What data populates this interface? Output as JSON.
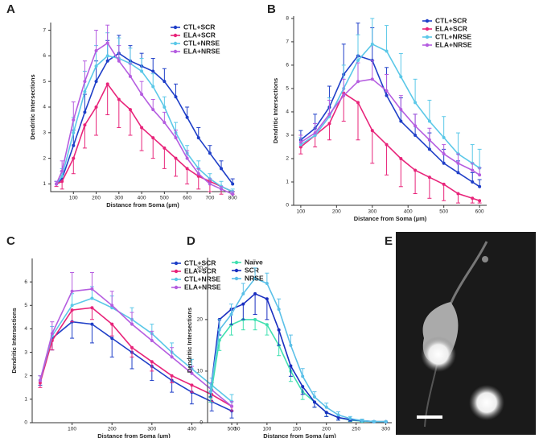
{
  "chart_data": [
    {
      "type": "line",
      "panel": "A",
      "xlabel": "Distance from Soma (µm)",
      "ylabel": "Dendritic Intersections",
      "legend": "upper right",
      "x": [
        25,
        50,
        100,
        150,
        200,
        250,
        300,
        350,
        400,
        450,
        500,
        550,
        600,
        650,
        700,
        750,
        800
      ],
      "xlim": [
        0,
        810
      ],
      "xticks": [
        100,
        200,
        300,
        400,
        500,
        600,
        700,
        800
      ],
      "ylim": [
        0.7,
        7.3
      ],
      "yticks": [
        1,
        2,
        3,
        4,
        5,
        6,
        7
      ],
      "series": [
        {
          "name": "CTL+SCR",
          "color": "#1f3fc8",
          "error_direction": "up",
          "values": [
            1.0,
            1.2,
            2.5,
            3.8,
            5.0,
            5.8,
            6.1,
            5.8,
            5.6,
            5.4,
            5.0,
            4.4,
            3.6,
            2.8,
            2.2,
            1.6,
            1.0
          ],
          "errors": [
            0.1,
            0.3,
            0.6,
            0.7,
            0.8,
            0.8,
            0.7,
            0.6,
            0.5,
            0.5,
            0.5,
            0.5,
            0.4,
            0.4,
            0.3,
            0.3,
            0.2
          ]
        },
        {
          "name": "ELA+SCR",
          "color": "#e8247a",
          "error_direction": "down",
          "values": [
            1.0,
            1.1,
            2.0,
            3.3,
            4.0,
            4.9,
            4.3,
            3.9,
            3.2,
            2.8,
            2.4,
            2.0,
            1.6,
            1.3,
            1.1,
            0.9,
            0.7
          ],
          "errors": [
            0.1,
            0.3,
            0.6,
            0.9,
            1.1,
            1.2,
            1.1,
            1.0,
            0.9,
            0.8,
            0.8,
            0.7,
            0.6,
            0.5,
            0.4,
            0.3,
            0.1
          ]
        },
        {
          "name": "CTL+NRSE",
          "color": "#5bc8e8",
          "error_direction": "up",
          "values": [
            1.0,
            1.3,
            3.0,
            4.6,
            5.6,
            6.0,
            5.9,
            5.7,
            5.4,
            4.8,
            4.0,
            3.0,
            2.2,
            1.6,
            1.2,
            0.9,
            0.7
          ],
          "errors": [
            0.1,
            0.3,
            0.6,
            0.8,
            0.8,
            0.9,
            0.8,
            0.6,
            0.5,
            0.5,
            0.4,
            0.4,
            0.3,
            0.3,
            0.2,
            0.2,
            0.1
          ]
        },
        {
          "name": "ELA+NRSE",
          "color": "#b55de0",
          "error_direction": "up",
          "values": [
            1.0,
            1.5,
            3.5,
            5.0,
            6.2,
            6.5,
            5.8,
            5.2,
            4.5,
            3.9,
            3.4,
            2.8,
            2.0,
            1.4,
            1.0,
            0.8,
            0.6
          ],
          "errors": [
            0.1,
            0.4,
            0.7,
            0.8,
            0.8,
            0.7,
            0.6,
            0.5,
            0.5,
            0.4,
            0.4,
            0.3,
            0.3,
            0.2,
            0.2,
            0.1,
            0.1
          ]
        }
      ]
    },
    {
      "type": "line",
      "panel": "B",
      "xlabel": "Distance from Soma (µm)",
      "ylabel": "Dendritic Intersections",
      "legend": "upper right",
      "x": [
        100,
        140,
        180,
        220,
        260,
        300,
        340,
        380,
        420,
        460,
        500,
        540,
        580,
        600
      ],
      "xlim": [
        80,
        620
      ],
      "xticks": [
        100,
        200,
        300,
        400,
        500,
        600
      ],
      "ylim": [
        0,
        8.1
      ],
      "yticks": [
        0,
        1,
        2,
        3,
        4,
        5,
        6,
        7,
        8
      ],
      "series": [
        {
          "name": "CTL+SCR",
          "color": "#1f3fc8",
          "error_direction": "up",
          "values": [
            2.8,
            3.3,
            4.2,
            5.6,
            6.4,
            6.2,
            4.7,
            3.6,
            3.0,
            2.4,
            1.8,
            1.4,
            1.0,
            0.8
          ],
          "errors": [
            0.4,
            0.6,
            0.9,
            1.3,
            1.4,
            1.4,
            1.2,
            1.0,
            0.9,
            0.7,
            0.6,
            0.5,
            0.4,
            0.3
          ]
        },
        {
          "name": "ELA+SCR",
          "color": "#e8247a",
          "error_direction": "down",
          "values": [
            2.5,
            3.0,
            3.5,
            4.8,
            4.4,
            3.2,
            2.6,
            2.0,
            1.5,
            1.2,
            0.9,
            0.5,
            0.3,
            0.2
          ],
          "errors": [
            0.3,
            0.5,
            0.7,
            1.2,
            1.6,
            1.4,
            1.3,
            1.2,
            1.0,
            0.9,
            0.7,
            0.4,
            0.2,
            0.1
          ]
        },
        {
          "name": "CTL+NRSE",
          "color": "#5bc8e8",
          "error_direction": "up",
          "values": [
            2.6,
            3.0,
            3.8,
            5.0,
            6.2,
            6.9,
            6.6,
            5.5,
            4.4,
            3.6,
            2.9,
            2.2,
            1.8,
            1.6
          ],
          "errors": [
            0.3,
            0.5,
            0.8,
            1.0,
            1.1,
            1.1,
            1.1,
            1.0,
            1.0,
            0.9,
            0.9,
            0.9,
            0.8,
            0.8
          ]
        },
        {
          "name": "ELA+NRSE",
          "color": "#b55de0",
          "error_direction": "up",
          "values": [
            2.7,
            3.1,
            3.9,
            4.7,
            5.3,
            5.4,
            4.9,
            4.1,
            3.4,
            2.8,
            2.2,
            1.8,
            1.5,
            1.3
          ],
          "errors": [
            0.3,
            0.4,
            0.6,
            0.7,
            0.8,
            0.8,
            0.7,
            0.6,
            0.5,
            0.5,
            0.4,
            0.4,
            0.3,
            0.3
          ]
        }
      ]
    },
    {
      "type": "line",
      "panel": "C",
      "xlabel": "Distance from Soma (µm)",
      "ylabel": "Dendritic Intersections",
      "legend": "upper right",
      "x": [
        20,
        50,
        100,
        150,
        200,
        250,
        300,
        350,
        400,
        450,
        500
      ],
      "xlim": [
        0,
        510
      ],
      "xticks": [
        100,
        200,
        300,
        400,
        500
      ],
      "ylim": [
        0,
        7
      ],
      "yticks": [
        0,
        1,
        2,
        3,
        4,
        5,
        6
      ],
      "series": [
        {
          "name": "CTL+SCR",
          "color": "#1f3fc8",
          "error_direction": "down",
          "values": [
            1.8,
            3.6,
            4.3,
            4.2,
            3.6,
            3.0,
            2.4,
            1.8,
            1.3,
            0.9,
            0.5
          ],
          "errors": [
            0.2,
            0.5,
            0.7,
            0.8,
            0.8,
            0.7,
            0.6,
            0.5,
            0.5,
            0.4,
            0.3
          ]
        },
        {
          "name": "ELA+SCR",
          "color": "#e8247a",
          "error_direction": "down",
          "values": [
            1.7,
            3.5,
            4.8,
            4.9,
            4.2,
            3.2,
            2.6,
            2.0,
            1.6,
            1.2,
            0.7
          ],
          "errors": [
            0.2,
            0.4,
            0.5,
            0.5,
            0.5,
            0.4,
            0.4,
            0.3,
            0.3,
            0.3,
            0.2
          ]
        },
        {
          "name": "CTL+NRSE",
          "color": "#5bc8e8",
          "error_direction": "up",
          "values": [
            1.8,
            3.7,
            5.0,
            5.3,
            4.9,
            4.4,
            3.8,
            3.0,
            2.3,
            1.6,
            0.9
          ],
          "errors": [
            0.2,
            0.4,
            0.5,
            0.5,
            0.5,
            0.5,
            0.4,
            0.4,
            0.4,
            0.3,
            0.3
          ]
        },
        {
          "name": "ELA+NRSE",
          "color": "#b55de0",
          "error_direction": "up",
          "values": [
            1.8,
            3.8,
            5.6,
            5.7,
            5.0,
            4.2,
            3.5,
            2.8,
            2.1,
            1.4,
            0.7
          ],
          "errors": [
            0.2,
            0.5,
            0.8,
            0.7,
            0.6,
            0.5,
            0.4,
            0.4,
            0.3,
            0.3,
            0.2
          ]
        }
      ]
    },
    {
      "type": "line",
      "panel": "D",
      "xlabel": "Distance from Soma (µm)",
      "ylabel": "Dendritic Intersections",
      "legend": "upper left",
      "x": [
        5,
        20,
        40,
        60,
        80,
        100,
        120,
        140,
        160,
        180,
        200,
        220,
        240,
        260,
        280,
        300
      ],
      "xlim": [
        0,
        310
      ],
      "xticks": [
        50,
        100,
        150,
        200,
        250,
        300
      ],
      "ylim": [
        0,
        32
      ],
      "yticks": [
        0,
        10,
        20,
        30
      ],
      "series": [
        {
          "name": "Naïve",
          "color": "#40e0b0",
          "error_direction": "down",
          "values": [
            5,
            16,
            19,
            20,
            20,
            19,
            15,
            10,
            6,
            4,
            2,
            1,
            0.5,
            0.3,
            0.2,
            0.2
          ],
          "errors": [
            1,
            2,
            2,
            2,
            2,
            2,
            2,
            2,
            1.5,
            1,
            0.8,
            0.5,
            0.3,
            0.2,
            0.1,
            0.1
          ]
        },
        {
          "name": "SCR",
          "color": "#1a2fc0",
          "error_direction": "down",
          "values": [
            6,
            20,
            22,
            23,
            25,
            24,
            18,
            11,
            7,
            4,
            2,
            1,
            0.6,
            0.4,
            0.2,
            0.2
          ],
          "errors": [
            1,
            3,
            3,
            3,
            4,
            4,
            3,
            2,
            1.5,
            1,
            0.8,
            0.5,
            0.3,
            0.2,
            0.1,
            0.1
          ]
        },
        {
          "name": "NRSE",
          "color": "#5bc0e8",
          "error_direction": "up",
          "values": [
            6,
            18,
            21,
            25,
            28,
            27,
            22,
            15,
            9,
            5,
            3,
            1.5,
            0.8,
            0.4,
            0.2,
            0.2
          ],
          "errors": [
            1,
            2,
            2,
            2,
            2,
            2,
            2,
            2,
            1.5,
            1,
            0.8,
            0.6,
            0.4,
            0.3,
            0.2,
            0.1
          ]
        }
      ]
    }
  ],
  "image_panel": {
    "panel": "E"
  }
}
